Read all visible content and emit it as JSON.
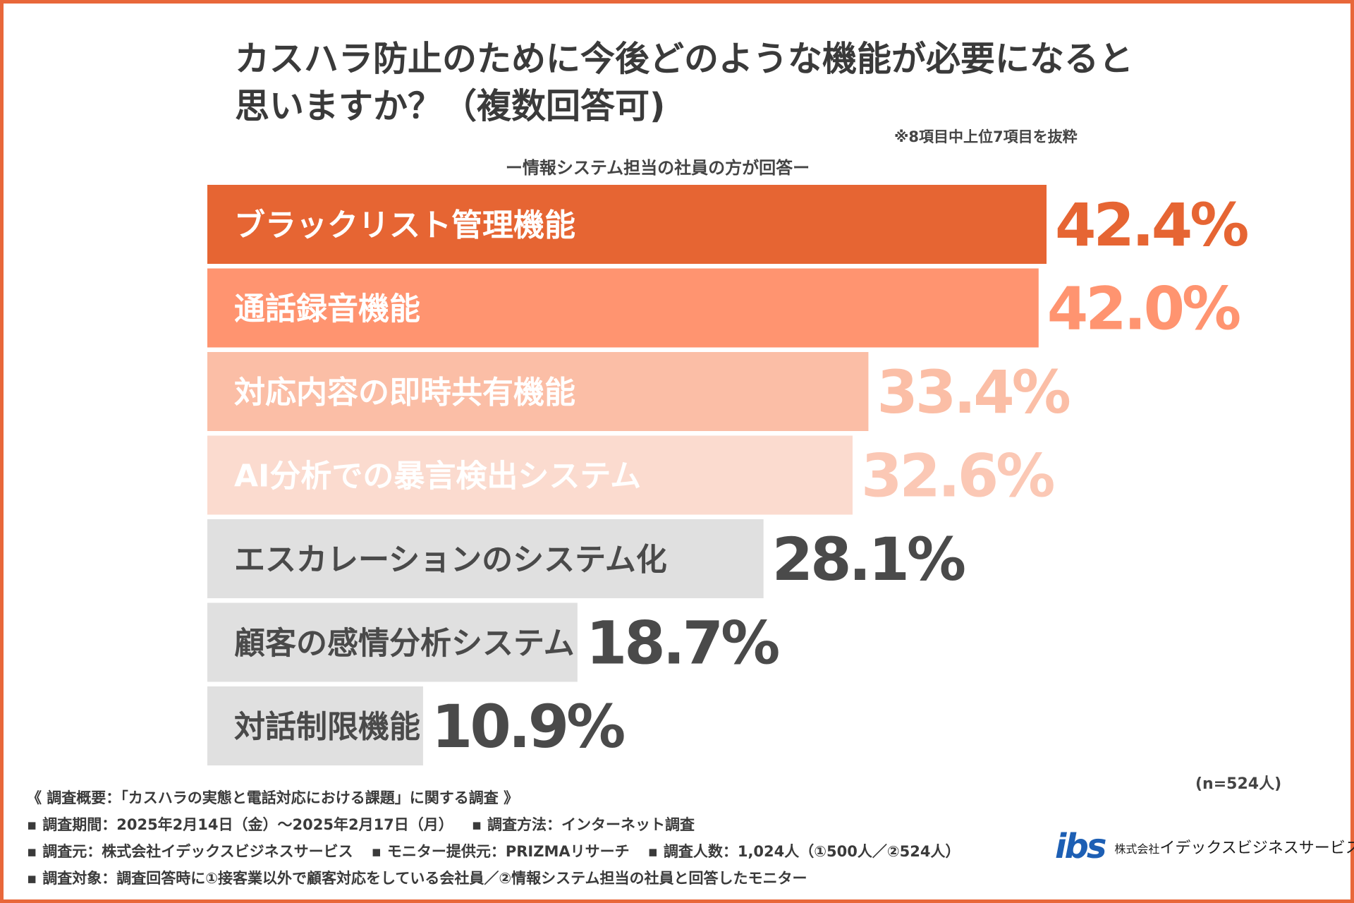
{
  "title": {
    "line1": "カスハラ防止のために今後どのような機能が必要になると",
    "line2": "思いますか？（複数回答可)"
  },
  "note": "※8項目中上位7項目を抜粋",
  "subtitle": "ー情報システム担当の社員の方が回答ー",
  "chart_data": {
    "type": "bar",
    "orientation": "horizontal",
    "title": "カスハラ防止のために今後どのような機能が必要になると思いますか？（複数回答可)",
    "xlabel": "",
    "ylabel": "",
    "xlim": [
      0,
      42.4
    ],
    "unit": "%",
    "categories": [
      "ブラックリスト管理機能",
      "通話録音機能",
      "対応内容の即時共有機能",
      "AI分析での暴言検出システム",
      "エスカレーションのシステム化",
      "顧客の感情分析システム",
      "対話制限機能"
    ],
    "values": [
      42.4,
      42.0,
      33.4,
      32.6,
      28.1,
      18.7,
      10.9
    ],
    "value_labels": [
      "42.4%",
      "42.0%",
      "33.4%",
      "32.6%",
      "28.1%",
      "18.7%",
      "10.9%"
    ],
    "bar_colors": [
      "#e66533",
      "#ff9470",
      "#fbbea6",
      "#fbdbcf",
      "#e0e0e0",
      "#e0e0e0",
      "#e0e0e0"
    ],
    "label_colors": [
      "#ffffff",
      "#ffffff",
      "#ffffff",
      "#ffffff",
      "#4a4a4a",
      "#4a4a4a",
      "#4a4a4a"
    ],
    "value_colors": [
      "#e66533",
      "#ff9470",
      "#fbbea6",
      "#fbc8b5",
      "#4a4a4a",
      "#4a4a4a",
      "#4a4a4a"
    ]
  },
  "sample_size": "(n=524人)",
  "overview": {
    "heading": "《 調査概要：「カスハラの実態と電話対応における課題」に関する調査 》",
    "period": "調査期間：2025年2月14日（金）〜2025年2月17日（月）",
    "method": "調査方法：インターネット調査",
    "source": "調査元：株式会社イデックスビジネスサービス",
    "panel": "モニター提供元：PRIZMAリサーチ",
    "respondents": "調査人数：1,024人（①500人／②524人）",
    "target": "調査対象：調査回答時に①接客業以外で顧客対応をしている会社員／②情報システム担当の社員と回答したモニター",
    "bullet": "▪"
  },
  "logo": {
    "mark": "ibs",
    "company_prefix": "株式会社",
    "company_name": "イデックスビジネスサービス"
  },
  "colors": {
    "frame": "#e8673a",
    "accent": "#e66533",
    "logo_blue": "#1d5fb4"
  }
}
